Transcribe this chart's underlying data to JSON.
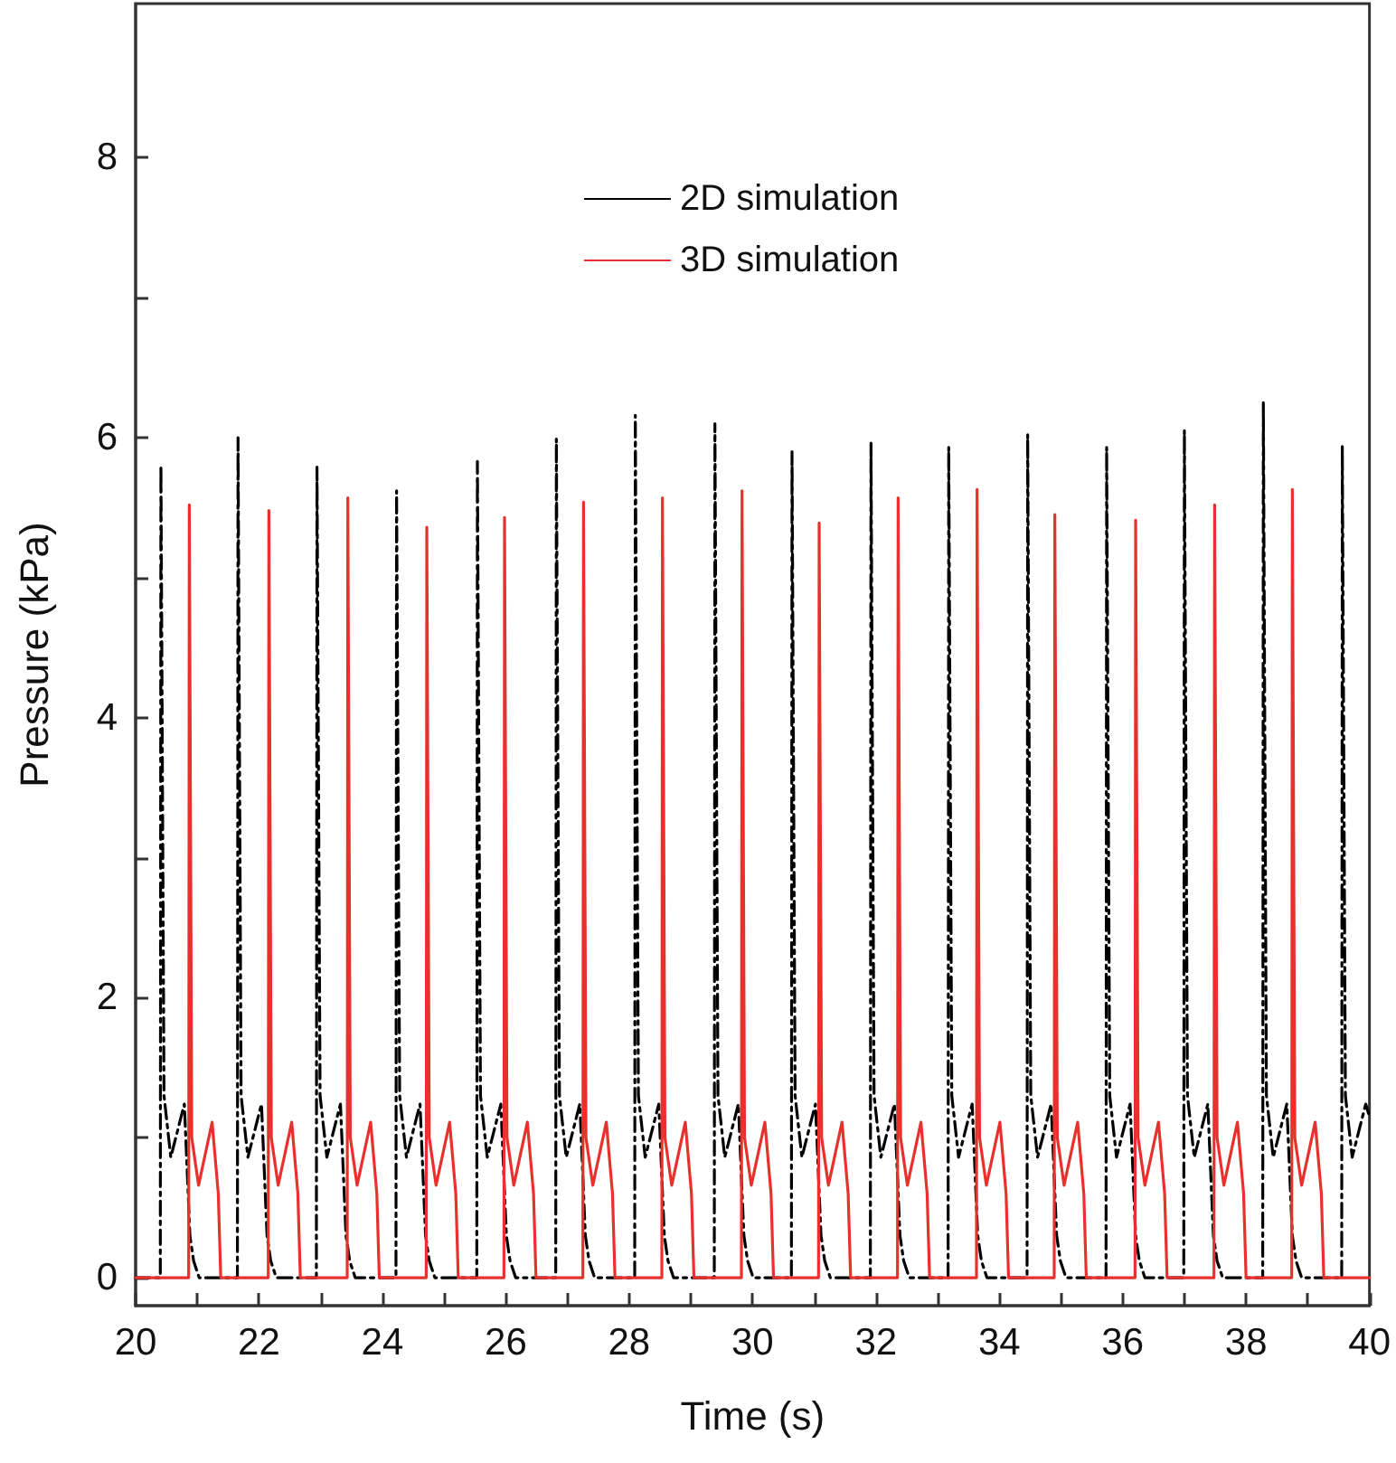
{
  "chart_data": {
    "type": "line",
    "xlabel": "Time (s)",
    "ylabel": "Pressure (kPa)",
    "xlim": [
      20,
      40
    ],
    "ylim": [
      -0.2,
      9.1
    ],
    "xticks": [
      20,
      {
        "value": 21,
        "label": null
      },
      22,
      {
        "value": 23,
        "label": null
      },
      24,
      {
        "value": 25,
        "label": null
      },
      26,
      {
        "value": 27,
        "label": null
      },
      28,
      {
        "value": 29,
        "label": null
      },
      30,
      {
        "value": 31,
        "label": null
      },
      32,
      {
        "value": 33,
        "label": null
      },
      34,
      {
        "value": 35,
        "label": null
      },
      36,
      {
        "value": 37,
        "label": null
      },
      38,
      {
        "value": 39,
        "label": null
      },
      40
    ],
    "yticks": [
      0,
      {
        "value": 1,
        "label": null
      },
      2,
      {
        "value": 3,
        "label": null
      },
      4,
      {
        "value": 5,
        "label": null
      },
      6,
      {
        "value": 7,
        "label": null
      },
      8
    ],
    "grid": false,
    "legend": "top",
    "marker": "none",
    "series": [
      {
        "name": "2D simulation",
        "color": "#000000",
        "line_style": "dashed",
        "x": [
          20,
          20.4,
          20.41,
          20.46,
          20.57,
          20.79,
          20.88,
          20.94,
          21.03,
          21.65,
          21.66,
          21.71,
          21.82,
          22.04,
          22.13,
          22.19,
          22.28,
          22.93,
          22.94,
          22.99,
          23.1,
          23.32,
          23.41,
          23.47,
          23.56,
          24.22,
          24.23,
          24.28,
          24.39,
          24.61,
          24.7,
          24.76,
          24.85,
          25.53,
          25.54,
          25.59,
          25.7,
          25.92,
          26.01,
          26.07,
          26.16,
          26.81,
          26.82,
          26.87,
          26.98,
          27.2,
          27.29,
          27.35,
          27.44,
          28.09,
          28.1,
          28.15,
          28.26,
          28.48,
          28.57,
          28.63,
          28.72,
          29.38,
          29.39,
          29.44,
          29.55,
          29.77,
          29.86,
          29.92,
          30.01,
          30.63,
          30.64,
          30.69,
          30.8,
          31.02,
          31.11,
          31.17,
          31.26,
          31.91,
          31.92,
          31.97,
          32.08,
          32.3,
          32.39,
          32.45,
          32.54,
          33.17,
          33.18,
          33.23,
          33.34,
          33.56,
          33.65,
          33.71,
          33.8,
          34.45,
          34.46,
          34.51,
          34.62,
          34.84,
          34.93,
          34.99,
          35.08,
          35.73,
          35.74,
          35.79,
          35.9,
          36.12,
          36.21,
          36.27,
          36.36,
          36.99,
          37.0,
          37.05,
          37.16,
          37.38,
          37.47,
          37.53,
          37.62,
          38.27,
          38.28,
          38.33,
          38.44,
          38.66,
          38.75,
          38.81,
          38.9,
          39.55,
          39.56,
          39.61,
          39.72,
          39.94,
          40
        ],
        "values": [
          0,
          0,
          5.8,
          1.3,
          0.86,
          1.24,
          0.3,
          0.12,
          0,
          0,
          6.0,
          1.3,
          0.86,
          1.24,
          0.3,
          0.12,
          0,
          0,
          5.79,
          1.3,
          0.86,
          1.24,
          0.3,
          0.12,
          0,
          0,
          5.62,
          1.3,
          0.86,
          1.24,
          0.3,
          0.12,
          0,
          0,
          5.83,
          1.3,
          0.86,
          1.24,
          0.3,
          0.12,
          0,
          0,
          5.99,
          1.3,
          0.86,
          1.24,
          0.3,
          0.12,
          0,
          0,
          6.16,
          1.3,
          0.86,
          1.24,
          0.3,
          0.12,
          0,
          0,
          6.1,
          1.3,
          0.86,
          1.24,
          0.3,
          0.12,
          0,
          0,
          5.9,
          1.3,
          0.86,
          1.24,
          0.3,
          0.12,
          0,
          0,
          5.96,
          1.3,
          0.86,
          1.24,
          0.3,
          0.12,
          0,
          0,
          5.93,
          1.3,
          0.86,
          1.24,
          0.3,
          0.12,
          0,
          0,
          6.02,
          1.3,
          0.86,
          1.24,
          0.3,
          0.12,
          0,
          0,
          5.93,
          1.3,
          0.86,
          1.24,
          0.3,
          0.12,
          0,
          0,
          6.05,
          1.3,
          0.86,
          1.24,
          0.3,
          0.12,
          0,
          0,
          6.25,
          1.3,
          0.86,
          1.24,
          0.3,
          0.12,
          0,
          0,
          5.94,
          1.3,
          0.86,
          1.24,
          1.15
        ]
      },
      {
        "name": "3D simulation",
        "color": "#e8312c",
        "line_style": "solid",
        "x": [
          20,
          20.86,
          20.87,
          20.91,
          21.02,
          21.24,
          21.34,
          21.38,
          22.15,
          22.16,
          22.2,
          22.31,
          22.53,
          22.63,
          22.67,
          23.43,
          23.44,
          23.48,
          23.59,
          23.81,
          23.91,
          23.95,
          24.71,
          24.72,
          24.76,
          24.87,
          25.09,
          25.19,
          25.23,
          25.97,
          25.98,
          26.02,
          26.13,
          26.35,
          26.45,
          26.49,
          27.25,
          27.26,
          27.3,
          27.41,
          27.63,
          27.73,
          27.77,
          28.53,
          28.54,
          28.58,
          28.69,
          28.91,
          29.01,
          29.05,
          29.82,
          29.83,
          29.87,
          29.98,
          30.2,
          30.3,
          30.34,
          31.07,
          31.08,
          31.12,
          31.23,
          31.45,
          31.55,
          31.59,
          32.35,
          32.36,
          32.4,
          32.51,
          32.73,
          32.83,
          32.87,
          33.63,
          33.64,
          33.68,
          33.79,
          34.01,
          34.11,
          34.15,
          34.89,
          34.9,
          34.94,
          35.05,
          35.27,
          35.37,
          35.41,
          36.2,
          36.21,
          36.25,
          36.36,
          36.58,
          36.68,
          36.72,
          37.48,
          37.49,
          37.53,
          37.64,
          37.86,
          37.96,
          38.0,
          38.74,
          38.75,
          38.79,
          38.9,
          39.12,
          39.22,
          39.26,
          40
        ],
        "values": [
          0,
          0,
          5.52,
          1.0,
          0.66,
          1.11,
          0.6,
          0,
          0,
          5.48,
          1.0,
          0.66,
          1.11,
          0.6,
          0,
          0,
          5.57,
          1.0,
          0.66,
          1.11,
          0.6,
          0,
          0,
          5.36,
          1.0,
          0.66,
          1.11,
          0.6,
          0,
          0,
          5.43,
          1.0,
          0.66,
          1.11,
          0.6,
          0,
          0,
          5.54,
          1.0,
          0.66,
          1.11,
          0.6,
          0,
          0,
          5.57,
          1.0,
          0.66,
          1.11,
          0.6,
          0,
          0,
          5.62,
          1.0,
          0.66,
          1.11,
          0.6,
          0,
          0,
          5.39,
          1.0,
          0.66,
          1.11,
          0.6,
          0,
          0,
          5.57,
          1.0,
          0.66,
          1.11,
          0.6,
          0,
          0,
          5.63,
          1.0,
          0.66,
          1.11,
          0.6,
          0,
          0,
          5.45,
          1.0,
          0.66,
          1.11,
          0.6,
          0,
          0,
          5.41,
          1.0,
          0.66,
          1.11,
          0.6,
          0,
          0,
          5.52,
          1.0,
          0.66,
          1.11,
          0.6,
          0,
          0,
          5.63,
          1.0,
          0.66,
          1.11,
          0.6,
          0,
          0
        ]
      }
    ]
  }
}
